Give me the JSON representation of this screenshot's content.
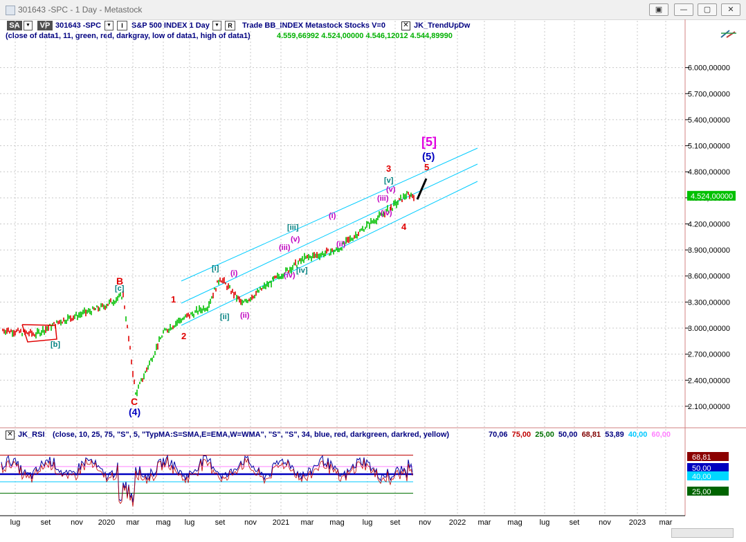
{
  "window": {
    "title": "301643 -SPC - 1 Day - Metastock",
    "buttons": [
      "▣",
      "—",
      "▢",
      "✕"
    ]
  },
  "toolbar": {
    "sa": "SA",
    "vp": "VP",
    "symbol": "301643 -SPC",
    "index_name": "S&P 500 INDEX  1 Day",
    "mode_i": "I",
    "mode_r": "R",
    "trade_info": "Trade  BB_INDEX  Metastock  Stocks  V=0",
    "indicator": "JK_TrendUpDw"
  },
  "formula": {
    "text": "(close of data1,  11,  green,  red,  darkgray,  low of data1,  high of data1)",
    "values": "4.559,66992  4.524,00000  4.546,12012  4.544,89990"
  },
  "price_axis": {
    "ticks": [
      "6.000,00000",
      "5.700,00000",
      "5.400,00000",
      "5.100,00000",
      "4.800,00000",
      "4.500,00000",
      "4.200,00000",
      "3.900,00000",
      "3.600,00000",
      "3.300,00000",
      "3.000,00000",
      "2.700,00000",
      "2.400,00000",
      "2.100,00000"
    ],
    "last_value": "4.524,00000"
  },
  "rsi": {
    "label": "JK_RSI",
    "params": "(close,  10,  25,  75,  \"S\",  5,  \"TypMA:S=SMA,E=EMA,W=WMA\",  \"S\",  \"S\",  34,  blue,  red,  darkgreen,  darkred,  yellow)",
    "values": [
      {
        "text": "70,06",
        "color": "#000080"
      },
      {
        "text": "75,00",
        "color": "#c00000"
      },
      {
        "text": "25,00",
        "color": "#007000"
      },
      {
        "text": "50,00",
        "color": "#000080"
      },
      {
        "text": "68,81",
        "color": "#800000"
      },
      {
        "text": "53,89",
        "color": "#000080"
      },
      {
        "text": "40,00",
        "color": "#00c8ff"
      },
      {
        "text": "60,00",
        "color": "#ff80ff"
      }
    ],
    "axis_badges": [
      {
        "text": "68,81",
        "color": "#8b0000"
      },
      {
        "text": "50,00",
        "color": "#0000c0"
      },
      {
        "text": "40,00",
        "color": "#00d8ff"
      },
      {
        "text": "25,00",
        "color": "#006400"
      }
    ]
  },
  "x_axis": {
    "labels": [
      "lug",
      "set",
      "nov",
      "2020",
      "mar",
      "mag",
      "lug",
      "set",
      "nov",
      "2021",
      "mar",
      "mag",
      "lug",
      "set",
      "nov",
      "2022",
      "mar",
      "mag",
      "lug",
      "set",
      "nov",
      "2023",
      "mar"
    ]
  },
  "wave_labels": [
    {
      "text": "[5]",
      "color": "#e000e0"
    },
    {
      "text": "(5)",
      "color": "#0000c0"
    },
    {
      "text": "5",
      "color": "#e00000"
    },
    {
      "text": "3",
      "color": "#e00000"
    },
    {
      "text": "[v]",
      "color": "#008080"
    },
    {
      "text": "(v)",
      "color": "#c000c0"
    },
    {
      "text": "(iii)",
      "color": "#c000c0"
    },
    {
      "text": "(iv)",
      "color": "#c000c0"
    },
    {
      "text": "4",
      "color": "#e00000"
    },
    {
      "text": "(i)",
      "color": "#c000c0"
    },
    {
      "text": "(ii)",
      "color": "#c000c0"
    },
    {
      "text": "[iii]",
      "color": "#008080"
    },
    {
      "text": "(v)",
      "color": "#c000c0"
    },
    {
      "text": "(iii)",
      "color": "#c000c0"
    },
    {
      "text": "[iv]",
      "color": "#008080"
    },
    {
      "text": "(iv)",
      "color": "#c000c0"
    },
    {
      "text": "[i]",
      "color": "#008080"
    },
    {
      "text": "(i)",
      "color": "#c000c0"
    },
    {
      "text": "1",
      "color": "#e00000"
    },
    {
      "text": "[ii]",
      "color": "#008080"
    },
    {
      "text": "(ii)",
      "color": "#c000c0"
    },
    {
      "text": "2",
      "color": "#e00000"
    },
    {
      "text": "B",
      "color": "#e00000"
    },
    {
      "text": "[c]",
      "color": "#008080"
    },
    {
      "text": "[b]",
      "color": "#008080"
    },
    {
      "text": "C",
      "color": "#e00000"
    },
    {
      "text": "(4)",
      "color": "#0000c0"
    }
  ],
  "chart_data": {
    "type": "line",
    "title": "S&P 500 INDEX  1 Day",
    "x": [
      "2019-07",
      "2019-09",
      "2019-11",
      "2020-01",
      "2020-02",
      "2020-03",
      "2020-05",
      "2020-06",
      "2020-07",
      "2020-09",
      "2020-10",
      "2020-11",
      "2021-01",
      "2021-03",
      "2021-05",
      "2021-07",
      "2021-09",
      "2021-10"
    ],
    "series": [
      {
        "values": [
          2980,
          2930,
          3080,
          3250,
          3380,
          2240,
          2950,
          3100,
          3250,
          3580,
          3280,
          3550,
          3800,
          3900,
          4180,
          4380,
          4540,
          4524
        ]
      }
    ],
    "ylim": [
      1900,
      6300
    ],
    "last_value": 4524,
    "channel_color": "#00ccff",
    "up_color": "#00c000",
    "down_color": "#e00000"
  }
}
